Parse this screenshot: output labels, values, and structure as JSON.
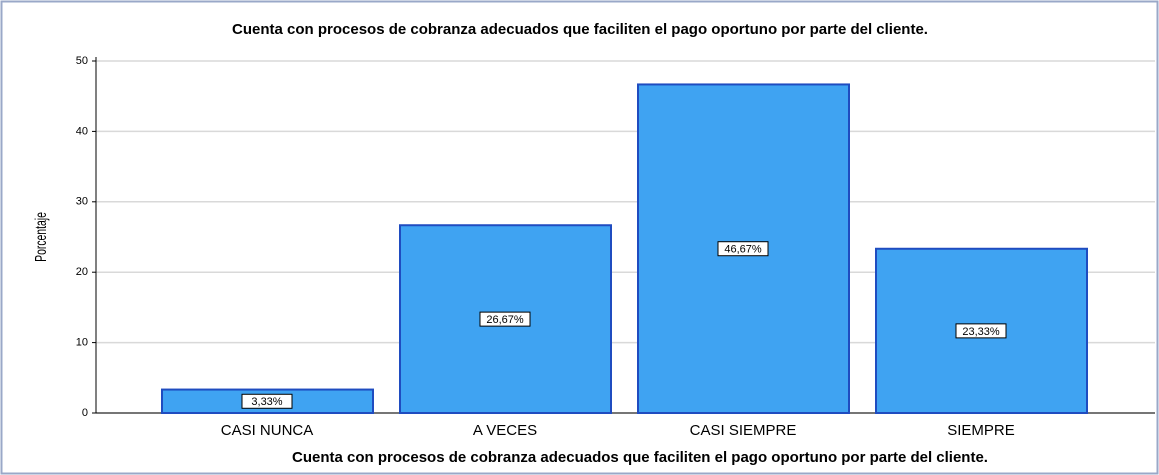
{
  "chart_data": {
    "type": "bar",
    "title": "Cuenta con procesos de cobranza adecuados que faciliten el pago oportuno por parte del cliente.",
    "x_label": "Cuenta con procesos de cobranza adecuados que faciliten el pago oportuno por parte del cliente.",
    "y_label": "Porcentaje",
    "categories": [
      "CASI NUNCA",
      "A VECES",
      "CASI SIEMPRE",
      "SIEMPRE"
    ],
    "values": [
      3.33,
      26.67,
      46.67,
      23.33
    ],
    "value_labels": [
      "3,33%",
      "26,67%",
      "46,67%",
      "23,33%"
    ],
    "color": "#3fa3f2",
    "ylim": [
      0,
      50
    ],
    "yticks": [
      0,
      10,
      20,
      30,
      40,
      50
    ],
    "grid": true
  }
}
